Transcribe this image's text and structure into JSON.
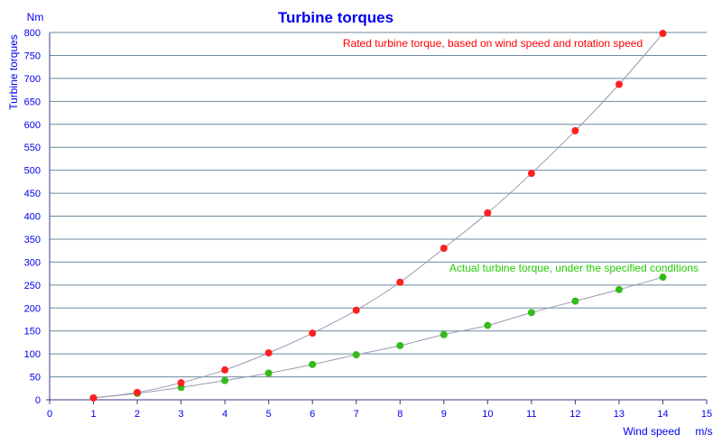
{
  "chart_data": {
    "type": "scatter",
    "title": "Turbine torques",
    "ylabel": "Turbine torques",
    "yunit": "Nm",
    "xlabel": "Wind speed",
    "xunit": "m/s",
    "xlim": [
      0,
      15
    ],
    "ylim": [
      0,
      800
    ],
    "xticks": [
      0,
      1,
      2,
      3,
      4,
      5,
      6,
      7,
      8,
      9,
      10,
      11,
      12,
      13,
      14,
      15
    ],
    "yticks": [
      0,
      50,
      100,
      150,
      200,
      250,
      300,
      350,
      400,
      450,
      500,
      550,
      600,
      650,
      700,
      750,
      800
    ],
    "grid": true,
    "x": [
      1,
      2,
      3,
      4,
      5,
      6,
      7,
      8,
      9,
      10,
      11,
      12,
      13,
      14
    ],
    "series": [
      {
        "name": "Rated turbine torque, based on wind speed and rotation speed",
        "color": "#ff2020",
        "values": [
          4,
          16,
          37,
          65,
          102,
          145,
          195,
          256,
          330,
          407,
          493,
          586,
          687,
          798
        ]
      },
      {
        "name": "Actual turbine torque, under the specified conditions",
        "color": "#33bb1a",
        "values": [
          4,
          14,
          27,
          42,
          58,
          77,
          98,
          118,
          142,
          162,
          190,
          215,
          240,
          267
        ]
      }
    ],
    "colors": {
      "text": "#0000ee",
      "grid": "#6c8a9e",
      "trend_line": "#9a9ab4",
      "series_label_1": "#ff0000",
      "series_label_2": "#22cc00"
    }
  }
}
